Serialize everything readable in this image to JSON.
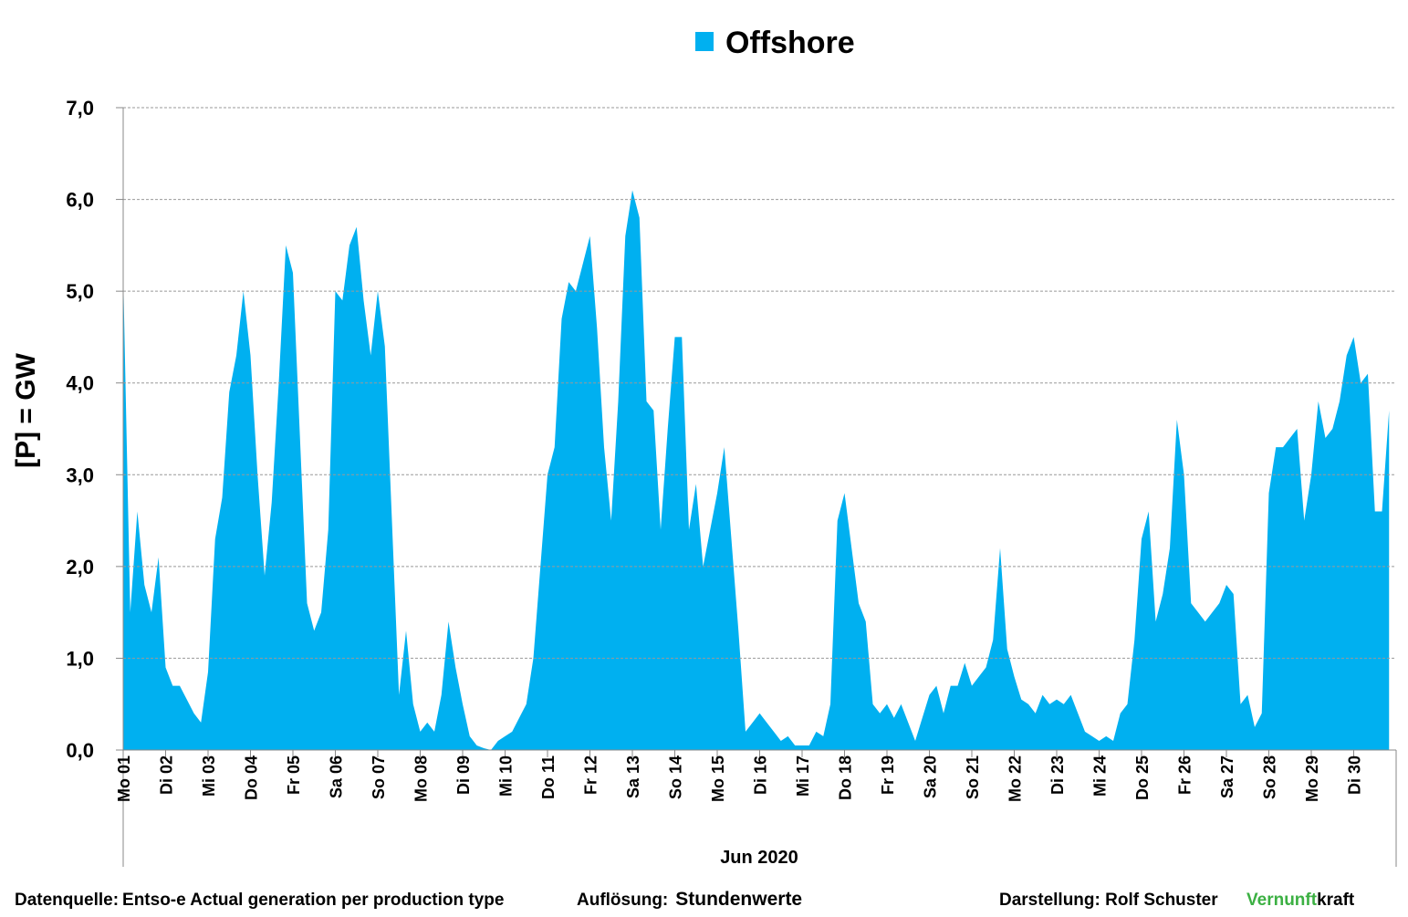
{
  "chart_data": {
    "type": "area",
    "legend_title": "Offshore",
    "ylabel": "[P]  =  GW",
    "xlabel": "Jun 2020",
    "ylim": [
      0,
      7
    ],
    "yticks": [
      {
        "value": 0,
        "label": "0,0"
      },
      {
        "value": 1,
        "label": "1,0"
      },
      {
        "value": 2,
        "label": "2,0"
      },
      {
        "value": 3,
        "label": "3,0"
      },
      {
        "value": 4,
        "label": "4,0"
      },
      {
        "value": 5,
        "label": "5,0"
      },
      {
        "value": 6,
        "label": "6,0"
      },
      {
        "value": 7,
        "label": "7,0"
      }
    ],
    "grid": true,
    "categories": [
      "Mo 01",
      null,
      null,
      null,
      null,
      null,
      "Di 02",
      null,
      null,
      null,
      null,
      null,
      "Mi 03",
      null,
      null,
      null,
      null,
      null,
      "Do 04",
      null,
      null,
      null,
      null,
      null,
      "Fr 05",
      null,
      null,
      null,
      null,
      null,
      "Sa 06",
      null,
      null,
      null,
      null,
      null,
      "So 07",
      null,
      null,
      null,
      null,
      null,
      "Mo 08",
      null,
      null,
      null,
      null,
      null,
      "Di 09",
      null,
      null,
      null,
      null,
      null,
      "Mi 10",
      null,
      null,
      null,
      null,
      null,
      "Do 11",
      null,
      null,
      null,
      null,
      null,
      "Fr 12",
      null,
      null,
      null,
      null,
      null,
      "Sa 13",
      null,
      null,
      null,
      null,
      null,
      "So 14",
      null,
      null,
      null,
      null,
      null,
      "Mo 15",
      null,
      null,
      null,
      null,
      null,
      "Di 16",
      null,
      null,
      null,
      null,
      null,
      "Mi 17",
      null,
      null,
      null,
      null,
      null,
      "Do 18",
      null,
      null,
      null,
      null,
      null,
      "Fr 19",
      null,
      null,
      null,
      null,
      null,
      "Sa 20",
      null,
      null,
      null,
      null,
      null,
      "So 21",
      null,
      null,
      null,
      null,
      null,
      "Mo 22",
      null,
      null,
      null,
      null,
      null,
      "Di 23",
      null,
      null,
      null,
      null,
      null,
      "Mi 24",
      null,
      null,
      null,
      null,
      null,
      "Do 25",
      null,
      null,
      null,
      null,
      null,
      "Fr 26",
      null,
      null,
      null,
      null,
      null,
      "Sa 27",
      null,
      null,
      null,
      null,
      null,
      "So 28",
      null,
      null,
      null,
      null,
      null,
      "Mo 29",
      null,
      null,
      null,
      null,
      null,
      "Di 30",
      null,
      null,
      null,
      null,
      null
    ],
    "series": [
      {
        "name": "Offshore",
        "color": "#00b0f0",
        "values": [
          5.2,
          1.5,
          2.6,
          1.8,
          1.5,
          2.1,
          0.9,
          0.7,
          0.7,
          0.55,
          0.4,
          0.3,
          0.85,
          2.3,
          2.75,
          3.9,
          4.3,
          5.0,
          4.3,
          3.0,
          1.9,
          2.7,
          4.0,
          5.5,
          5.2,
          3.4,
          1.6,
          1.3,
          1.5,
          2.4,
          5.0,
          4.9,
          5.5,
          5.7,
          4.9,
          4.3,
          5.0,
          4.4,
          2.5,
          0.6,
          1.3,
          0.5,
          0.2,
          0.3,
          0.2,
          0.6,
          1.4,
          0.9,
          0.5,
          0.15,
          0.05,
          0.02,
          0,
          0.1,
          0.15,
          0.2,
          0.35,
          0.5,
          1.0,
          2.0,
          3.0,
          3.3,
          4.7,
          5.1,
          5.0,
          5.3,
          5.6,
          4.6,
          3.3,
          2.5,
          3.8,
          5.6,
          6.1,
          5.8,
          3.8,
          3.7,
          2.4,
          3.5,
          4.5,
          4.5,
          2.4,
          2.9,
          2.0,
          2.4,
          2.8,
          3.3,
          2.3,
          1.3,
          0.2,
          0.3,
          0.4,
          0.3,
          0.2,
          0.1,
          0.15,
          0.05,
          0.05,
          0.05,
          0.2,
          0.15,
          0.5,
          2.5,
          2.8,
          2.2,
          1.6,
          1.4,
          0.5,
          0.4,
          0.5,
          0.35,
          0.5,
          0.3,
          0.1,
          0.35,
          0.6,
          0.7,
          0.4,
          0.7,
          0.7,
          0.95,
          0.7,
          0.8,
          0.9,
          1.2,
          2.2,
          1.1,
          0.8,
          0.55,
          0.5,
          0.4,
          0.6,
          0.5,
          0.55,
          0.5,
          0.6,
          0.4,
          0.2,
          0.15,
          0.1,
          0.15,
          0.1,
          0.4,
          0.5,
          1.2,
          2.3,
          2.6,
          1.4,
          1.7,
          2.2,
          3.6,
          3.0,
          1.6,
          1.5,
          1.4,
          1.5,
          1.6,
          1.8,
          1.7,
          0.5,
          0.6,
          0.25,
          0.4,
          2.8,
          3.3,
          3.3,
          3.4,
          3.5,
          2.5,
          3.0,
          3.8,
          3.4,
          3.5,
          3.8,
          4.3,
          4.5,
          4.0,
          4.1,
          2.6,
          2.6,
          3.7
        ]
      }
    ]
  },
  "footer": {
    "source_label": "Datenquelle:",
    "source": "Entso-e  Actual generation per production type",
    "resolution_label": "Auflösung:",
    "resolution": "Stundenwerte",
    "author": "Darstellung:  Rolf Schuster",
    "brand_a": "Vernunft",
    "brand_b": "kraft"
  }
}
